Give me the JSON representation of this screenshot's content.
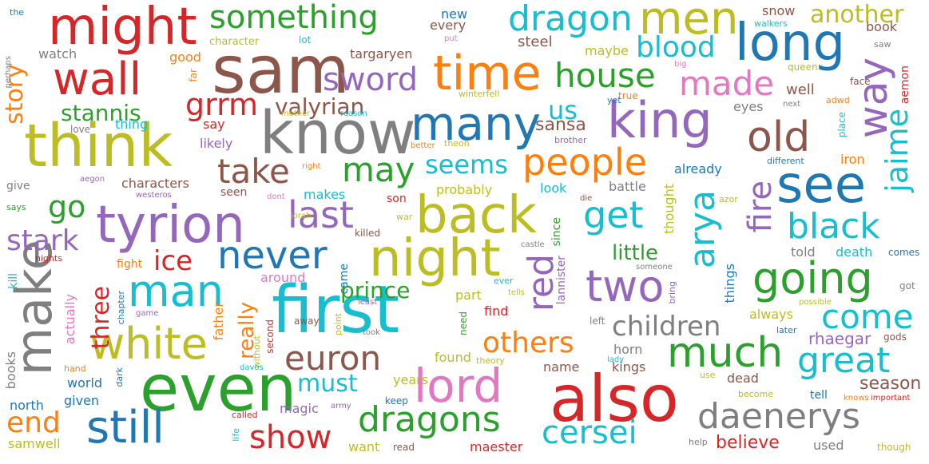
{
  "palette": {
    "red": "#d62728",
    "orange": "#ff7f0e",
    "green": "#2ca02c",
    "blue": "#1f77b4",
    "cyan": "#17becf",
    "purple": "#9467bd",
    "brown": "#8c564b",
    "pink": "#e377c2",
    "gray": "#7f7f7f",
    "olive": "#bcbd22"
  },
  "words": [
    {
      "text": "think",
      "color": "olive"
    },
    {
      "text": "know",
      "color": "gray"
    },
    {
      "text": "first",
      "color": "cyan"
    },
    {
      "text": "sam",
      "color": "brown"
    },
    {
      "text": "even",
      "color": "green"
    },
    {
      "text": "also",
      "color": "red"
    },
    {
      "text": "make",
      "color": "gray"
    },
    {
      "text": "tyrion",
      "color": "purple"
    },
    {
      "text": "might",
      "color": "red"
    },
    {
      "text": "night",
      "color": "olive"
    },
    {
      "text": "back",
      "color": "olive"
    },
    {
      "text": "time",
      "color": "orange"
    },
    {
      "text": "many",
      "color": "blue"
    },
    {
      "text": "king",
      "color": "purple"
    },
    {
      "text": "see",
      "color": "blue"
    },
    {
      "text": "long",
      "color": "blue"
    },
    {
      "text": "wall",
      "color": "red"
    },
    {
      "text": "men",
      "color": "olive"
    },
    {
      "text": "white",
      "color": "olive"
    },
    {
      "text": "lord",
      "color": "pink"
    },
    {
      "text": "still",
      "color": "blue"
    },
    {
      "text": "dragons",
      "color": "green"
    },
    {
      "text": "daenerys",
      "color": "gray"
    },
    {
      "text": "much",
      "color": "green"
    },
    {
      "text": "going",
      "color": "green"
    },
    {
      "text": "two",
      "color": "purple"
    },
    {
      "text": "man",
      "color": "cyan"
    },
    {
      "text": "old",
      "color": "brown"
    },
    {
      "text": "arya",
      "color": "cyan"
    },
    {
      "text": "way",
      "color": "purple"
    },
    {
      "text": "dragon",
      "color": "cyan"
    },
    {
      "text": "something",
      "color": "green"
    },
    {
      "text": "last",
      "color": "purple"
    },
    {
      "text": "never",
      "color": "blue"
    },
    {
      "text": "people",
      "color": "orange"
    },
    {
      "text": "made",
      "color": "pink"
    },
    {
      "text": "get",
      "color": "cyan"
    },
    {
      "text": "black",
      "color": "cyan"
    },
    {
      "text": "great",
      "color": "cyan"
    },
    {
      "text": "come",
      "color": "cyan"
    },
    {
      "text": "cersei",
      "color": "cyan"
    },
    {
      "text": "show",
      "color": "red"
    },
    {
      "text": "euron",
      "color": "brown"
    },
    {
      "text": "house",
      "color": "green"
    },
    {
      "text": "sword",
      "color": "purple"
    },
    {
      "text": "blood",
      "color": "cyan"
    },
    {
      "text": "may",
      "color": "green"
    },
    {
      "text": "take",
      "color": "brown"
    },
    {
      "text": "grrm",
      "color": "red"
    },
    {
      "text": "red",
      "color": "purple"
    },
    {
      "text": "jaime",
      "color": "cyan"
    },
    {
      "text": "fire",
      "color": "purple"
    },
    {
      "text": "children",
      "color": "gray"
    },
    {
      "text": "others",
      "color": "orange"
    },
    {
      "text": "stark",
      "color": "purple"
    },
    {
      "text": "ice",
      "color": "red"
    },
    {
      "text": "go",
      "color": "green"
    },
    {
      "text": "end",
      "color": "orange"
    },
    {
      "text": "story",
      "color": "orange"
    },
    {
      "text": "another",
      "color": "olive"
    },
    {
      "text": "seems",
      "color": "cyan"
    },
    {
      "text": "us",
      "color": "cyan"
    },
    {
      "text": "must",
      "color": "cyan"
    },
    {
      "text": "stannis",
      "color": "green"
    },
    {
      "text": "valyrian",
      "color": "brown"
    },
    {
      "text": "prince",
      "color": "green"
    },
    {
      "text": "three",
      "color": "red"
    },
    {
      "text": "really",
      "color": "orange"
    },
    {
      "text": "little",
      "color": "green"
    },
    {
      "text": "sansa",
      "color": "brown"
    },
    {
      "text": "season",
      "color": "brown"
    },
    {
      "text": "rhaegar",
      "color": "purple"
    },
    {
      "text": "believe",
      "color": "red"
    },
    {
      "text": "targaryen",
      "color": "brown"
    },
    {
      "text": "steel",
      "color": "brown"
    },
    {
      "text": "watch",
      "color": "gray"
    },
    {
      "text": "every",
      "color": "brown"
    },
    {
      "text": "new",
      "color": "blue"
    },
    {
      "text": "snow",
      "color": "brown"
    },
    {
      "text": "book",
      "color": "brown"
    },
    {
      "text": "character",
      "color": "olive"
    },
    {
      "text": "lot",
      "color": "cyan"
    },
    {
      "text": "put",
      "color": "pink"
    },
    {
      "text": "good",
      "color": "orange"
    },
    {
      "text": "maybe",
      "color": "olive"
    },
    {
      "text": "perhaps",
      "color": "gray"
    },
    {
      "text": "the",
      "color": "blue"
    },
    {
      "text": "walkers",
      "color": "cyan"
    },
    {
      "text": "saw",
      "color": "gray"
    },
    {
      "text": "queen",
      "color": "olive"
    },
    {
      "text": "big",
      "color": "pink"
    },
    {
      "text": "far",
      "color": "orange"
    },
    {
      "text": "winterfell",
      "color": "olive"
    },
    {
      "text": "well",
      "color": "brown"
    },
    {
      "text": "face",
      "color": "brown"
    },
    {
      "text": "aemon",
      "color": "red"
    },
    {
      "text": "adwd",
      "color": "orange"
    },
    {
      "text": "next",
      "color": "gray"
    },
    {
      "text": "true",
      "color": "orange"
    },
    {
      "text": "yet",
      "color": "blue"
    },
    {
      "text": "eyes",
      "color": "gray"
    },
    {
      "text": "place",
      "color": "cyan"
    },
    {
      "text": "love",
      "color": "gray"
    },
    {
      "text": "thing",
      "color": "cyan"
    },
    {
      "text": "mother",
      "color": "olive"
    },
    {
      "text": "reason",
      "color": "cyan"
    },
    {
      "text": "say",
      "color": "red"
    },
    {
      "text": "brother",
      "color": "purple"
    },
    {
      "text": "likely",
      "color": "purple"
    },
    {
      "text": "theon",
      "color": "olive"
    },
    {
      "text": "better",
      "color": "orange"
    },
    {
      "text": "iron",
      "color": "orange"
    },
    {
      "text": "different",
      "color": "blue"
    },
    {
      "text": "already",
      "color": "blue"
    },
    {
      "text": "give",
      "color": "gray"
    },
    {
      "text": "aegon",
      "color": "purple"
    },
    {
      "text": "characters",
      "color": "brown"
    },
    {
      "text": "right",
      "color": "orange"
    },
    {
      "text": "probably",
      "color": "olive"
    },
    {
      "text": "look",
      "color": "cyan"
    },
    {
      "text": "battle",
      "color": "gray"
    },
    {
      "text": "seen",
      "color": "brown"
    },
    {
      "text": "westeros",
      "color": "purple"
    },
    {
      "text": "dont",
      "color": "pink"
    },
    {
      "text": "makes",
      "color": "cyan"
    },
    {
      "text": "son",
      "color": "red"
    },
    {
      "text": "die",
      "color": "brown"
    },
    {
      "text": "thought",
      "color": "olive"
    },
    {
      "text": "azor",
      "color": "olive"
    },
    {
      "text": "says",
      "color": "green"
    },
    {
      "text": "jorah",
      "color": "olive"
    },
    {
      "text": "war",
      "color": "olive"
    },
    {
      "text": "killed",
      "color": "brown"
    },
    {
      "text": "since",
      "color": "green"
    },
    {
      "text": "castle",
      "color": "gray"
    },
    {
      "text": "told",
      "color": "gray"
    },
    {
      "text": "death",
      "color": "cyan"
    },
    {
      "text": "comes",
      "color": "blue"
    },
    {
      "text": "kill",
      "color": "cyan"
    },
    {
      "text": "nights",
      "color": "red"
    },
    {
      "text": "fight",
      "color": "orange"
    },
    {
      "text": "lannister",
      "color": "purple"
    },
    {
      "text": "someone",
      "color": "gray"
    },
    {
      "text": "things",
      "color": "blue"
    },
    {
      "text": "got",
      "color": "gray"
    },
    {
      "text": "around",
      "color": "pink"
    },
    {
      "text": "came",
      "color": "blue"
    },
    {
      "text": "ever",
      "color": "cyan"
    },
    {
      "text": "bring",
      "color": "purple"
    },
    {
      "text": "possible",
      "color": "olive"
    },
    {
      "text": "actually",
      "color": "pink"
    },
    {
      "text": "chapter",
      "color": "blue"
    },
    {
      "text": "game",
      "color": "purple"
    },
    {
      "text": "father",
      "color": "orange"
    },
    {
      "text": "part",
      "color": "olive"
    },
    {
      "text": "tells",
      "color": "olive"
    },
    {
      "text": "least",
      "color": "purple"
    },
    {
      "text": "away",
      "color": "brown"
    },
    {
      "text": "point",
      "color": "olive"
    },
    {
      "text": "left",
      "color": "gray"
    },
    {
      "text": "later",
      "color": "blue"
    },
    {
      "text": "always",
      "color": "olive"
    },
    {
      "text": "second",
      "color": "red"
    },
    {
      "text": "find",
      "color": "red"
    },
    {
      "text": "need",
      "color": "green"
    },
    {
      "text": "took",
      "color": "gray"
    },
    {
      "text": "gods",
      "color": "brown"
    },
    {
      "text": "horn",
      "color": "gray"
    },
    {
      "text": "without",
      "color": "olive"
    },
    {
      "text": "books",
      "color": "gray"
    },
    {
      "text": "hand",
      "color": "orange"
    },
    {
      "text": "world",
      "color": "blue"
    },
    {
      "text": "dark",
      "color": "blue"
    },
    {
      "text": "davos",
      "color": "cyan"
    },
    {
      "text": "theory",
      "color": "olive"
    },
    {
      "text": "lady",
      "color": "cyan"
    },
    {
      "text": "kings",
      "color": "brown"
    },
    {
      "text": "found",
      "color": "olive"
    },
    {
      "text": "name",
      "color": "brown"
    },
    {
      "text": "dead",
      "color": "brown"
    },
    {
      "text": "years",
      "color": "olive"
    },
    {
      "text": "use",
      "color": "olive"
    },
    {
      "text": "north",
      "color": "blue"
    },
    {
      "text": "given",
      "color": "blue"
    },
    {
      "text": "magic",
      "color": "purple"
    },
    {
      "text": "army",
      "color": "purple"
    },
    {
      "text": "keep",
      "color": "blue"
    },
    {
      "text": "become",
      "color": "olive"
    },
    {
      "text": "tell",
      "color": "blue"
    },
    {
      "text": "knows",
      "color": "orange"
    },
    {
      "text": "important",
      "color": "red"
    },
    {
      "text": "called",
      "color": "red"
    },
    {
      "text": "want",
      "color": "olive"
    },
    {
      "text": "read",
      "color": "brown"
    },
    {
      "text": "maester",
      "color": "red"
    },
    {
      "text": "help",
      "color": "gray"
    },
    {
      "text": "used",
      "color": "gray"
    },
    {
      "text": "though",
      "color": "olive"
    },
    {
      "text": "samwell",
      "color": "olive"
    },
    {
      "text": "life",
      "color": "cyan"
    }
  ]
}
